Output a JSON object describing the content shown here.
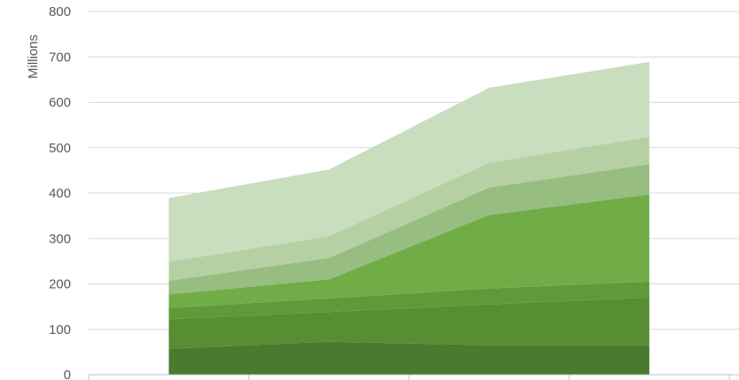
{
  "chart_data": {
    "type": "area",
    "stacked": true,
    "title": "",
    "xlabel": "",
    "ylabel": "Millions",
    "ylim": [
      0,
      800
    ],
    "yticks": [
      0,
      100,
      200,
      300,
      400,
      500,
      600,
      700,
      800
    ],
    "grid": true,
    "categories": [
      "",
      "",
      "",
      ""
    ],
    "series": [
      {
        "values": [
          57,
          73,
          65,
          65
        ],
        "color": "#4a7a2e"
      },
      {
        "values": [
          65,
          65,
          90,
          105
        ],
        "color": "#578d33"
      },
      {
        "values": [
          25,
          30,
          35,
          35
        ],
        "color": "#5f9a3a"
      },
      {
        "values": [
          30,
          42,
          162,
          192
        ],
        "color": "#70ad47"
      },
      {
        "values": [
          30,
          47,
          60,
          67
        ],
        "color": "#97bd81"
      },
      {
        "values": [
          42,
          48,
          55,
          60
        ],
        "color": "#b5d1a3"
      },
      {
        "values": [
          140,
          147,
          165,
          165
        ],
        "color": "#c9ddbf"
      }
    ]
  }
}
